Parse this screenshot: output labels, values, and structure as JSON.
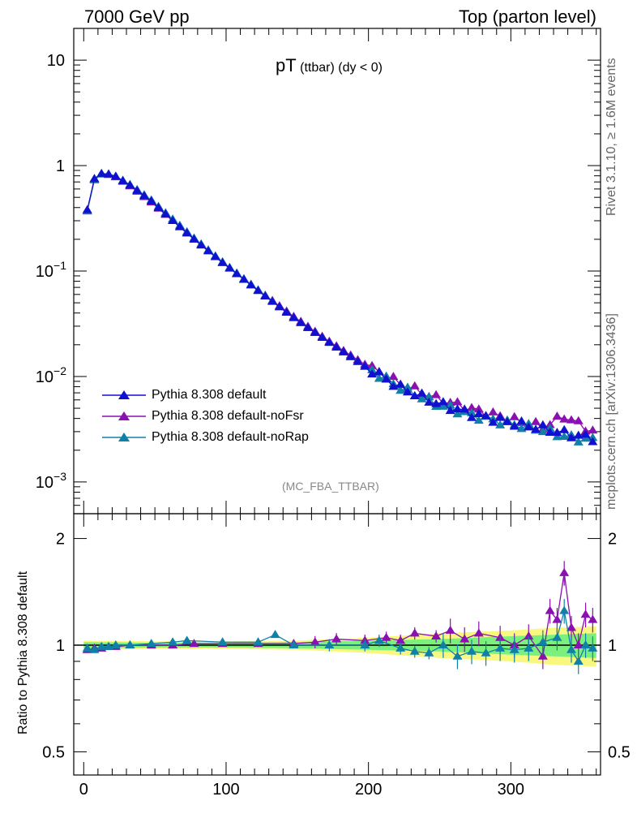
{
  "header": {
    "left": "7000 GeV pp",
    "right": "Top (parton level)"
  },
  "side_labels": {
    "rivet": "Rivet 3.1.10, ≥ 1.6M events",
    "mcplots": "mcplots.cern.ch [arXiv:1306.3436]"
  },
  "plot_title": {
    "main": "pT",
    "sub": " (ttbar) (dy < 0)"
  },
  "analysis_id": "(MC_FBA_TTBAR)",
  "ratio_ylabel": "Ratio to Pythia 8.308 default",
  "chart_data": [
    {
      "type": "line",
      "title": "pT (ttbar) (dy < 0)",
      "xlabel": "",
      "ylabel": "",
      "yscale": "log",
      "xlim": [
        -7,
        363
      ],
      "ylim": [
        0.0005,
        20
      ],
      "x_ticks": [
        "0",
        "100",
        "200",
        "300"
      ],
      "y_ticks": [
        "10^-3",
        "10^-2",
        "10^-1",
        "1",
        "10"
      ],
      "legend_position": "lower-left",
      "series": [
        {
          "name": "Pythia 8.308 default",
          "color": "#1010d0",
          "x": [
            2.5,
            7.5,
            12.5,
            17.5,
            22.5,
            32.5,
            47.5,
            62.5,
            77.5,
            97.5,
            122.5,
            147.5,
            172.5,
            197.5,
            222.5,
            247.5,
            272.5,
            297.5,
            322.5,
            342.5,
            357.5
          ],
          "y": [
            0.38,
            0.75,
            0.84,
            0.83,
            0.79,
            0.65,
            0.46,
            0.3,
            0.2,
            0.12,
            0.065,
            0.036,
            0.021,
            0.0125,
            0.0078,
            0.0056,
            0.0044,
            0.0037,
            0.0032,
            0.0028,
            0.0026
          ]
        },
        {
          "name": "Pythia 8.308 default-noFsr",
          "color": "#8a10b0",
          "x": [
            2.5,
            7.5,
            12.5,
            17.5,
            22.5,
            32.5,
            47.5,
            62.5,
            77.5,
            97.5,
            122.5,
            147.5,
            172.5,
            197.5,
            222.5,
            247.5,
            272.5,
            297.5,
            322.5,
            337.5,
            357.5
          ],
          "y": [
            0.37,
            0.74,
            0.83,
            0.82,
            0.78,
            0.64,
            0.45,
            0.3,
            0.2,
            0.12,
            0.066,
            0.037,
            0.0215,
            0.013,
            0.0085,
            0.0062,
            0.0049,
            0.004,
            0.0033,
            0.0042,
            0.003
          ]
        },
        {
          "name": "Pythia 8.308 default-noRap",
          "color": "#1080a8",
          "x": [
            2.5,
            7.5,
            12.5,
            17.5,
            22.5,
            32.5,
            47.5,
            62.5,
            77.5,
            97.5,
            122.5,
            147.5,
            172.5,
            197.5,
            222.5,
            247.5,
            272.5,
            297.5,
            322.5,
            342.5,
            357.5
          ],
          "y": [
            0.37,
            0.73,
            0.83,
            0.83,
            0.79,
            0.66,
            0.47,
            0.31,
            0.205,
            0.122,
            0.066,
            0.036,
            0.021,
            0.0124,
            0.0078,
            0.0055,
            0.0043,
            0.0036,
            0.0031,
            0.0026,
            0.0025
          ]
        }
      ]
    },
    {
      "type": "line",
      "title": "",
      "xlabel": "",
      "ylabel": "Ratio to Pythia 8.308 default",
      "yscale": "log",
      "xlim": [
        -7,
        363
      ],
      "ylim": [
        0.43,
        2.35
      ],
      "x_ticks": [
        "0",
        "100",
        "200",
        "300"
      ],
      "y_ticks": [
        "0.5",
        "1",
        "2"
      ],
      "band_colors": {
        "inner": "#7cf07c",
        "outer": "#f8f880"
      },
      "band": {
        "x": [
          0,
          50,
          100,
          150,
          200,
          250,
          300,
          330,
          360
        ],
        "inner": [
          0.02,
          0.015,
          0.015,
          0.02,
          0.03,
          0.04,
          0.06,
          0.07,
          0.08
        ],
        "outer": [
          0.03,
          0.025,
          0.025,
          0.03,
          0.05,
          0.08,
          0.1,
          0.12,
          0.13
        ]
      },
      "series": [
        {
          "name": "Pythia 8.308 default-noFsr",
          "color": "#8a10b0",
          "x": [
            2.5,
            7.5,
            12.5,
            17.5,
            22.5,
            32.5,
            47.5,
            62.5,
            77.5,
            97.5,
            122.5,
            147.5,
            162.5,
            177.5,
            197.5,
            212.5,
            222.5,
            232.5,
            247.5,
            257.5,
            267.5,
            277.5,
            292.5,
            302.5,
            312.5,
            322.5,
            327.5,
            332.5,
            337.5,
            342.5,
            347.5,
            352.5,
            357.5
          ],
          "y": [
            0.97,
            0.98,
            0.98,
            0.99,
            0.99,
            1.0,
            1.0,
            1.0,
            1.01,
            1.01,
            1.01,
            1.01,
            1.02,
            1.04,
            1.03,
            1.05,
            1.03,
            1.08,
            1.06,
            1.1,
            1.04,
            1.08,
            1.05,
            1.0,
            1.06,
            0.93,
            1.25,
            1.18,
            1.6,
            1.12,
            1.0,
            1.22,
            1.18
          ]
        },
        {
          "name": "Pythia 8.308 default-noRap",
          "color": "#1080a8",
          "x": [
            2.5,
            7.5,
            12.5,
            17.5,
            22.5,
            32.5,
            47.5,
            62.5,
            72.5,
            97.5,
            122.5,
            134.5,
            147.5,
            172.5,
            197.5,
            207.5,
            222.5,
            232.5,
            242.5,
            252.5,
            262.5,
            272.5,
            282.5,
            292.5,
            302.5,
            312.5,
            322.5,
            332.5,
            337.5,
            342.5,
            347.5,
            352.5,
            357.5
          ],
          "y": [
            0.98,
            0.97,
            0.99,
            0.99,
            1.0,
            1.0,
            1.01,
            1.02,
            1.03,
            1.02,
            1.02,
            1.07,
            1.0,
            1.0,
            1.0,
            1.03,
            0.98,
            0.96,
            0.95,
            1.0,
            0.93,
            0.96,
            0.95,
            0.98,
            0.97,
            0.98,
            1.02,
            1.05,
            1.25,
            0.97,
            0.9,
            1.0,
            0.98
          ]
        }
      ]
    }
  ]
}
